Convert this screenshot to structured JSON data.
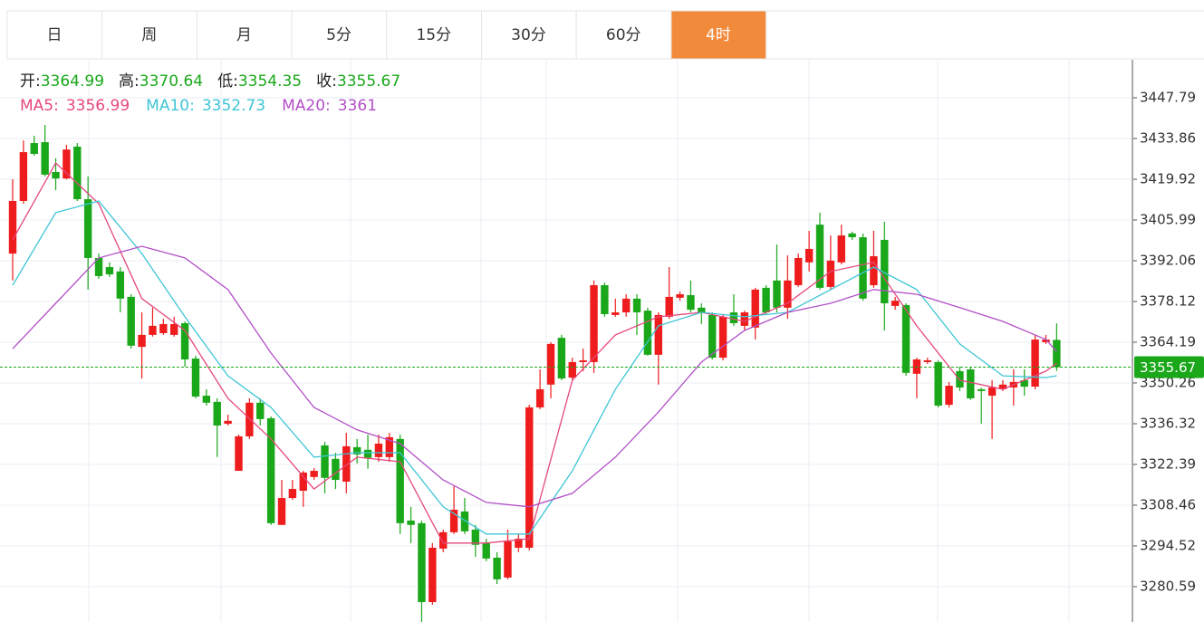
{
  "tabs": [
    "日",
    "周",
    "月",
    "5分",
    "15分",
    "30分",
    "60分",
    "4时"
  ],
  "active_tab": 7,
  "chart_data": {
    "type": "candlestick",
    "up_color": "#ee1c1c",
    "down_color": "#1aa81a",
    "ohlc_labels": [
      "开:",
      "高:",
      "低:",
      "收:"
    ],
    "open": [
      3394.5,
      3412.5,
      3432.3,
      3432.6,
      3422.4,
      3420.2,
      3431.1,
      3413.1,
      3393.0,
      3389.9,
      3388.4,
      3379.7,
      3362.6,
      3366.7,
      3367.3,
      3366.7,
      3370.7,
      3358.6,
      3345.9,
      3343.8,
      3336.3,
      3320.2,
      3332.0,
      3343.5,
      3338.2,
      3301.7,
      3310.9,
      3313.4,
      3318.1,
      3328.9,
      3324.3,
      3316.5,
      3328.3,
      3327.4,
      3324.9,
      3324.9,
      3331.1,
      3303.2,
      3302.3,
      3275.3,
      3293.6,
      3299.2,
      3306.3,
      3300.1,
      3295.5,
      3290.5,
      3283.7,
      3293.9,
      3293.9,
      3341.9,
      3349.7,
      3365.7,
      3352.1,
      3357.4,
      3357.4,
      3383.7,
      3373.5,
      3374.4,
      3379.1,
      3375.0,
      3359.9,
      3372.9,
      3379.4,
      3380.3,
      3376.0,
      3373.5,
      3358.9,
      3374.4,
      3369.8,
      3369.2,
      3382.8,
      3385.3,
      3376.0,
      3383.7,
      3391.5,
      3404.4,
      3383.1,
      3391.5,
      3401.4,
      3400.1,
      3383.7,
      3399.2,
      3376.6,
      3376.9,
      3353.4,
      3357.4,
      3357.4,
      3342.8,
      3354.3,
      3354.9,
      3348.1,
      3345.9,
      3348.1,
      3348.7,
      3351.2,
      3349.0,
      3364.2,
      3364.99
    ],
    "high": [
      3419.9,
      3433.2,
      3434.8,
      3438.5,
      3427.1,
      3431.7,
      3432.3,
      3420.9,
      3394.5,
      3391.5,
      3389.9,
      3380.6,
      3374.4,
      3376.0,
      3372.2,
      3372.9,
      3371.3,
      3359.6,
      3348.1,
      3345.0,
      3339.4,
      3332.6,
      3345.0,
      3345.0,
      3338.8,
      3317.1,
      3317.1,
      3320.2,
      3321.2,
      3330.1,
      3326.4,
      3333.2,
      3331.1,
      3332.6,
      3332.6,
      3333.2,
      3332.6,
      3307.9,
      3303.2,
      3295.5,
      3300.1,
      3314.9,
      3310.9,
      3301.7,
      3297.0,
      3292.4,
      3300.1,
      3298.6,
      3342.8,
      3354.9,
      3364.2,
      3366.7,
      3358.9,
      3362.0,
      3385.3,
      3384.6,
      3379.1,
      3380.6,
      3380.6,
      3376.0,
      3374.4,
      3389.9,
      3381.5,
      3385.3,
      3377.5,
      3374.4,
      3373.5,
      3380.6,
      3375.0,
      3382.8,
      3383.7,
      3397.6,
      3393.9,
      3394.5,
      3402.3,
      3408.5,
      3400.7,
      3404.4,
      3402.0,
      3401.4,
      3402.3,
      3405.4,
      3379.7,
      3377.5,
      3358.9,
      3358.9,
      3358.0,
      3350.6,
      3355.8,
      3355.8,
      3348.7,
      3351.2,
      3351.2,
      3354.9,
      3354.9,
      3366.7,
      3366.7,
      3370.64
    ],
    "low": [
      3385.3,
      3411.6,
      3428.0,
      3420.9,
      3416.2,
      3419.9,
      3412.5,
      3382.2,
      3385.9,
      3386.5,
      3374.4,
      3362.0,
      3351.8,
      3366.1,
      3366.7,
      3366.1,
      3355.8,
      3345.0,
      3342.5,
      3324.9,
      3335.7,
      3320.2,
      3331.1,
      3335.7,
      3301.7,
      3301.7,
      3310.3,
      3307.9,
      3317.1,
      3312.5,
      3314.0,
      3312.5,
      3322.7,
      3320.9,
      3323.3,
      3323.3,
      3298.6,
      3295.5,
      3268.5,
      3274.4,
      3292.4,
      3298.6,
      3298.6,
      3290.8,
      3289.3,
      3281.5,
      3283.1,
      3292.4,
      3293.0,
      3341.3,
      3345.0,
      3351.2,
      3351.2,
      3354.3,
      3353.7,
      3372.9,
      3372.9,
      3372.9,
      3366.7,
      3359.6,
      3349.7,
      3372.2,
      3378.4,
      3374.4,
      3370.4,
      3358.3,
      3358.0,
      3369.8,
      3368.2,
      3365.1,
      3373.5,
      3374.4,
      3372.2,
      3383.1,
      3388.4,
      3382.2,
      3382.2,
      3390.8,
      3399.2,
      3378.4,
      3382.8,
      3368.2,
      3375.3,
      3352.7,
      3345.0,
      3356.8,
      3341.9,
      3341.9,
      3347.5,
      3344.4,
      3336.3,
      3331.1,
      3347.5,
      3342.5,
      3345.9,
      3348.1,
      3363.6,
      3354.35
    ],
    "close": [
      3412.5,
      3429.2,
      3428.6,
      3421.5,
      3420.2,
      3430.1,
      3413.1,
      3393.0,
      3386.8,
      3387.4,
      3379.1,
      3363.0,
      3366.7,
      3369.8,
      3370.4,
      3370.4,
      3358.3,
      3345.6,
      3343.5,
      3335.7,
      3337.3,
      3332.0,
      3343.5,
      3337.9,
      3302.3,
      3310.9,
      3314.0,
      3319.6,
      3320.2,
      3317.8,
      3317.1,
      3328.6,
      3325.8,
      3324.6,
      3329.5,
      3331.7,
      3302.3,
      3301.7,
      3275.3,
      3293.9,
      3299.2,
      3306.9,
      3299.5,
      3294.9,
      3290.2,
      3283.1,
      3296.1,
      3297.0,
      3341.9,
      3348.1,
      3363.6,
      3351.8,
      3357.4,
      3358.0,
      3383.7,
      3373.8,
      3374.4,
      3379.1,
      3374.4,
      3359.9,
      3373.5,
      3379.7,
      3380.6,
      3375.3,
      3374.4,
      3358.9,
      3372.9,
      3370.7,
      3374.4,
      3382.2,
      3374.4,
      3376.0,
      3385.3,
      3393.0,
      3396.1,
      3382.8,
      3392.1,
      3400.7,
      3400.1,
      3379.1,
      3393.6,
      3377.5,
      3378.4,
      3353.7,
      3358.3,
      3358.0,
      3342.5,
      3349.3,
      3348.7,
      3345.0,
      3347.5,
      3348.7,
      3349.7,
      3350.6,
      3349.0,
      3365.1,
      3365.1,
      3355.67
    ],
    "series": [
      {
        "name": "MA5:",
        "color": "#e5477d",
        "x": [
          0,
          4,
          8,
          12,
          16,
          20,
          24,
          28,
          32,
          36,
          40,
          44,
          48,
          52,
          56,
          60,
          64,
          68,
          72,
          76,
          80,
          84,
          88,
          92,
          96,
          97
        ],
        "values": [
          3399.2,
          3425.5,
          3411.6,
          3379.1,
          3368.2,
          3345.0,
          3331.1,
          3314.0,
          3324.9,
          3323.3,
          3295.5,
          3295.5,
          3297.0,
          3351.2,
          3366.7,
          3372.9,
          3374.4,
          3371.3,
          3377.5,
          3388.4,
          3391.5,
          3369.8,
          3351.2,
          3348.1,
          3354.3,
          3356.99
        ]
      },
      {
        "name": "MA10:",
        "color": "#3ec5d6",
        "x": [
          0,
          4,
          8,
          12,
          16,
          20,
          24,
          28,
          32,
          36,
          40,
          44,
          48,
          52,
          56,
          60,
          64,
          68,
          72,
          76,
          80,
          84,
          88,
          92,
          96,
          97
        ],
        "values": [
          3383.7,
          3408.5,
          3412.5,
          3394.5,
          3372.9,
          3352.7,
          3341.9,
          3324.9,
          3326.4,
          3326.4,
          3307.9,
          3298.6,
          3298.6,
          3320.2,
          3348.1,
          3369.8,
          3374.4,
          3372.9,
          3374.4,
          3382.2,
          3389.9,
          3382.2,
          3363.6,
          3352.7,
          3352.1,
          3352.73
        ]
      },
      {
        "name": "MA20:",
        "color": "#b24fc6",
        "x": [
          0,
          4,
          8,
          12,
          16,
          20,
          24,
          28,
          32,
          36,
          40,
          44,
          48,
          52,
          56,
          60,
          64,
          68,
          72,
          76,
          80,
          84,
          88,
          92,
          96,
          97
        ],
        "values": [
          3362.0,
          3377.5,
          3393.0,
          3397.0,
          3393.0,
          3382.2,
          3360.5,
          3341.9,
          3334.2,
          3329.5,
          3317.1,
          3309.4,
          3307.9,
          3312.5,
          3324.9,
          3340.3,
          3357.4,
          3368.2,
          3374.4,
          3377.5,
          3382.2,
          3380.6,
          3376.0,
          3371.3,
          3365.1,
          3361.0
        ]
      }
    ],
    "ylim": [
      3268.5,
      3460.8
    ],
    "yticks": [
      3447.79,
      3433.86,
      3419.92,
      3405.99,
      3392.06,
      3378.12,
      3364.19,
      3350.26,
      3336.32,
      3322.39,
      3308.46,
      3294.52,
      3280.59
    ],
    "grid": true
  }
}
